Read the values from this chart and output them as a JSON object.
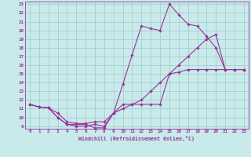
{
  "bg_color": "#c8eaea",
  "line_color": "#993399",
  "grid_color": "#a0c8c8",
  "xlabel": "Windchill (Refroidissement éolien,°C)",
  "xlim_min": -0.5,
  "xlim_max": 23.5,
  "ylim_min": 8.7,
  "ylim_max": 23.3,
  "xticks": [
    0,
    1,
    2,
    3,
    4,
    5,
    6,
    7,
    8,
    9,
    10,
    11,
    12,
    13,
    14,
    15,
    16,
    17,
    18,
    19,
    20,
    21,
    22,
    23
  ],
  "yticks": [
    9,
    10,
    11,
    12,
    13,
    14,
    15,
    16,
    17,
    18,
    19,
    20,
    21,
    22,
    23
  ],
  "line1_x": [
    0,
    1,
    2,
    3,
    4,
    5,
    6,
    7,
    8,
    9,
    10,
    11,
    12,
    13,
    14,
    15,
    16,
    17,
    18,
    19,
    20,
    21,
    22,
    23
  ],
  "line1_y": [
    11.5,
    11.2,
    11.1,
    10.0,
    9.2,
    9.2,
    9.2,
    8.8,
    8.8,
    10.5,
    11.5,
    11.5,
    11.5,
    11.5,
    11.5,
    15.0,
    15.2,
    15.5,
    15.5,
    15.5,
    15.5,
    15.5,
    15.5,
    15.5
  ],
  "line2_x": [
    0,
    1,
    2,
    3,
    4,
    5,
    6,
    7,
    8,
    9,
    10,
    11,
    12,
    13,
    14,
    15,
    16,
    17,
    18,
    19,
    20,
    21,
    22,
    23
  ],
  "line2_y": [
    11.5,
    11.2,
    11.1,
    10.0,
    9.2,
    9.0,
    9.0,
    9.2,
    9.0,
    10.5,
    13.8,
    17.2,
    20.5,
    20.2,
    20.0,
    23.0,
    21.8,
    20.7,
    20.5,
    19.3,
    18.0,
    15.5,
    15.5,
    15.5
  ],
  "line3_x": [
    0,
    1,
    2,
    3,
    4,
    5,
    6,
    7,
    8,
    9,
    10,
    11,
    12,
    13,
    14,
    15,
    16,
    17,
    18,
    19,
    20,
    21,
    22,
    23
  ],
  "line3_y": [
    11.5,
    11.2,
    11.1,
    10.5,
    9.5,
    9.3,
    9.3,
    9.5,
    9.5,
    10.5,
    11.0,
    11.5,
    12.0,
    13.0,
    14.0,
    15.0,
    16.0,
    17.0,
    18.0,
    19.0,
    19.5,
    15.5,
    15.5,
    15.5
  ]
}
